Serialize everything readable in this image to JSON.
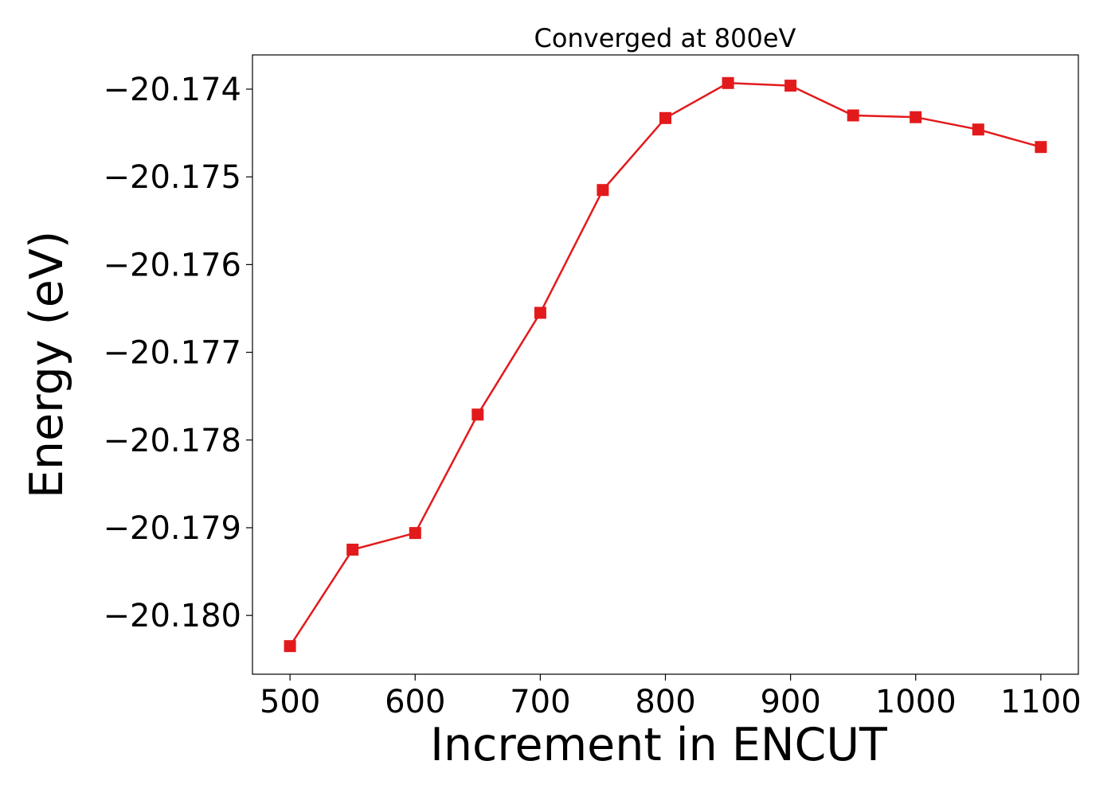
{
  "chart_data": {
    "type": "line",
    "title": "Converged at 800eV",
    "xlabel": "Increment in ENCUT",
    "ylabel": "Energy (eV)",
    "x": [
      500,
      550,
      600,
      650,
      700,
      750,
      800,
      850,
      900,
      950,
      1000,
      1050,
      1100
    ],
    "series": [
      {
        "values": [
          -20.18035,
          -20.17925,
          -20.17906,
          -20.17771,
          -20.17655,
          -20.17515,
          -20.17433,
          -20.17393,
          -20.17396,
          -20.1743,
          -20.17432,
          -20.17446,
          -20.17466
        ],
        "color": "#e31a1c",
        "marker": "square"
      }
    ],
    "xlim": [
      470,
      1130
    ],
    "ylim": [
      -20.18067,
      -20.17361
    ],
    "x_ticks": [
      500,
      600,
      700,
      800,
      900,
      1000,
      1100
    ],
    "x_tick_labels": [
      "500",
      "600",
      "700",
      "800",
      "900",
      "1000",
      "1100"
    ],
    "y_ticks": [
      -20.18,
      -20.179,
      -20.178,
      -20.177,
      -20.176,
      -20.175,
      -20.174
    ],
    "y_tick_labels": [
      "−20.180",
      "−20.179",
      "−20.178",
      "−20.177",
      "−20.176",
      "−20.175",
      "−20.174"
    ],
    "grid": false,
    "legend": "none"
  }
}
